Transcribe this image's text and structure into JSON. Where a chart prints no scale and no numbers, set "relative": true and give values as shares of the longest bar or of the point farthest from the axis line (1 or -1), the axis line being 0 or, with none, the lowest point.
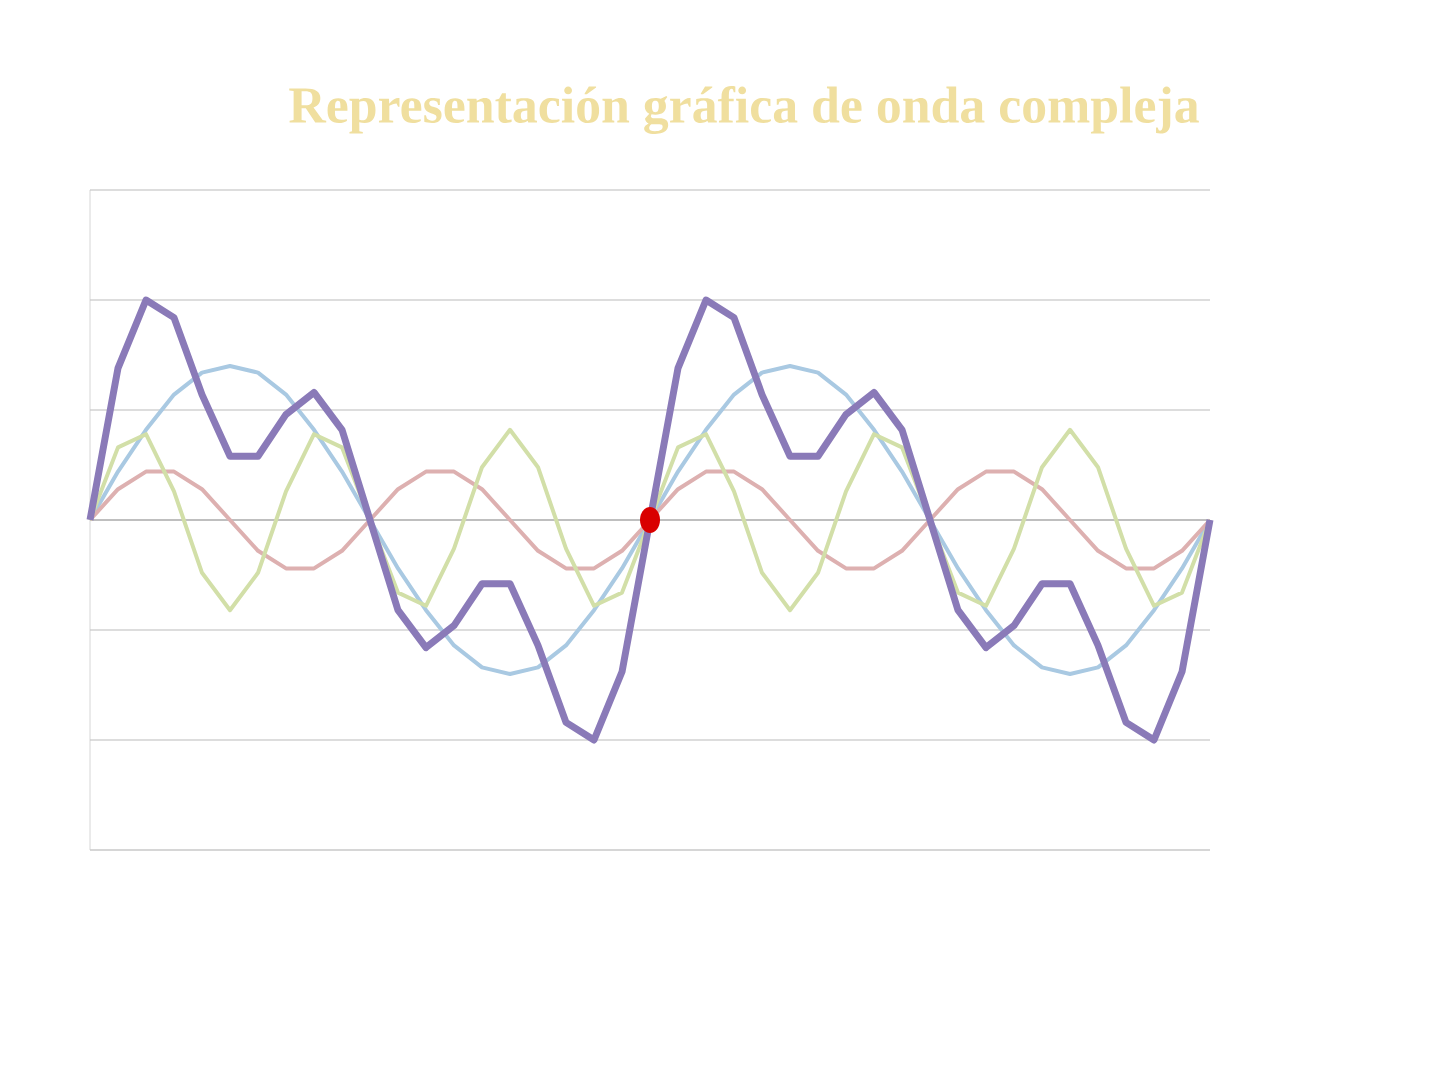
{
  "chart_data": {
    "type": "line",
    "title": "Representación gráfica de onda compleja",
    "relative": true,
    "grid": "y",
    "tick_labels": false,
    "marker": "none",
    "categories": [
      null,
      null,
      null,
      null,
      null,
      null,
      null,
      null,
      null,
      null,
      null,
      null,
      null,
      null,
      null,
      null,
      null,
      null,
      null,
      null,
      null,
      null,
      null,
      null,
      null,
      null,
      null,
      null,
      null,
      null,
      null,
      null,
      null,
      null,
      null,
      null,
      null,
      null,
      null,
      null,
      null
    ],
    "series": [
      {
        "color": "#a9c9e2",
        "values": [
          0,
          0.22,
          0.41,
          0.57,
          0.67,
          0.7,
          0.67,
          0.57,
          0.41,
          0.22,
          0,
          -0.22,
          -0.41,
          -0.57,
          -0.67,
          -0.7,
          -0.67,
          -0.57,
          -0.41,
          -0.22,
          0,
          0.22,
          0.41,
          0.57,
          0.67,
          0.7,
          0.67,
          0.57,
          0.41,
          0.22,
          0,
          -0.22,
          -0.41,
          -0.57,
          -0.67,
          -0.7,
          -0.67,
          -0.57,
          -0.41,
          -0.22,
          0
        ]
      },
      {
        "color": "#ddb0b0",
        "values": [
          0,
          0.14,
          0.22,
          0.22,
          0.14,
          0,
          -0.14,
          -0.22,
          -0.22,
          -0.14,
          0,
          0.14,
          0.22,
          0.22,
          0.14,
          0,
          -0.14,
          -0.22,
          -0.22,
          -0.14,
          0,
          0.14,
          0.22,
          0.22,
          0.14,
          0,
          -0.14,
          -0.22,
          -0.22,
          -0.14,
          0,
          0.14,
          0.22,
          0.22,
          0.14,
          0,
          -0.14,
          -0.22,
          -0.22,
          -0.14,
          0
        ]
      },
      {
        "color": "#d2dfa8",
        "values": [
          0,
          0.33,
          0.39,
          0.13,
          -0.24,
          -0.41,
          -0.24,
          0.13,
          0.39,
          0.33,
          0,
          -0.33,
          -0.39,
          -0.13,
          0.24,
          0.41,
          0.24,
          -0.13,
          -0.39,
          -0.33,
          0,
          0.33,
          0.39,
          0.13,
          -0.24,
          -0.41,
          -0.24,
          0.13,
          0.39,
          0.33,
          0,
          -0.33,
          -0.39,
          -0.13,
          0.24,
          0.41,
          0.24,
          -0.13,
          -0.39,
          -0.33,
          0
        ]
      },
      {
        "color": "#8a7ab8",
        "values": [
          0,
          0.69,
          1.0,
          0.92,
          0.57,
          0.29,
          0.29,
          0.48,
          0.58,
          0.41,
          0,
          -0.41,
          -0.58,
          -0.48,
          -0.29,
          -0.29,
          -0.57,
          -0.92,
          -1.0,
          -0.69,
          0,
          0.69,
          1.0,
          0.92,
          0.57,
          0.29,
          0.29,
          0.48,
          0.58,
          0.41,
          0,
          -0.41,
          -0.58,
          -0.48,
          -0.29,
          -0.29,
          -0.57,
          -0.92,
          -1.0,
          -0.69,
          0
        ]
      }
    ]
  }
}
